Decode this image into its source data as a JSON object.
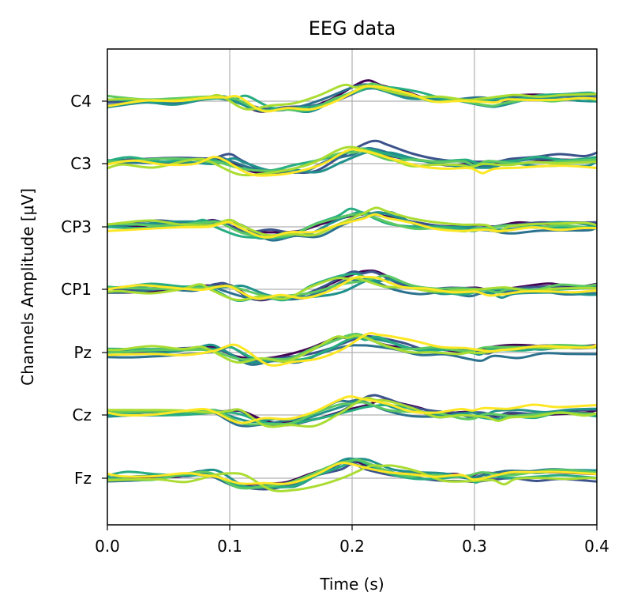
{
  "chart_data": {
    "type": "line",
    "title": "EEG data",
    "xlabel": "Time (s)",
    "ylabel": "Channels Amplitude [μV]",
    "xlim": [
      0.0,
      0.4
    ],
    "grid": true,
    "x_ticks": [
      "0.0",
      "0.1",
      "0.2",
      "0.3",
      "0.4"
    ],
    "x_tick_values": [
      0.0,
      0.1,
      0.2,
      0.3,
      0.4
    ],
    "channels": [
      "Fz",
      "Cz",
      "Pz",
      "CP1",
      "CP3",
      "C3",
      "C4"
    ],
    "series_colors": [
      "#440154",
      "#3b528b",
      "#2c728e",
      "#21918c",
      "#27ad81",
      "#5ec962",
      "#aadc32",
      "#fde725"
    ],
    "x": [
      0.0,
      0.025,
      0.05,
      0.075,
      0.09,
      0.1,
      0.12,
      0.14,
      0.16,
      0.18,
      0.2,
      0.21,
      0.22,
      0.24,
      0.26,
      0.28,
      0.3,
      0.31,
      0.32,
      0.34,
      0.36,
      0.38,
      0.4
    ],
    "template": [
      0.0,
      0.05,
      0.05,
      0.1,
      0.2,
      0.1,
      -0.4,
      -0.35,
      -0.3,
      0.1,
      0.55,
      0.65,
      0.6,
      0.25,
      0.05,
      0.0,
      -0.05,
      -0.1,
      0.0,
      0.05,
      0.1,
      0.1,
      0.1
    ]
  }
}
